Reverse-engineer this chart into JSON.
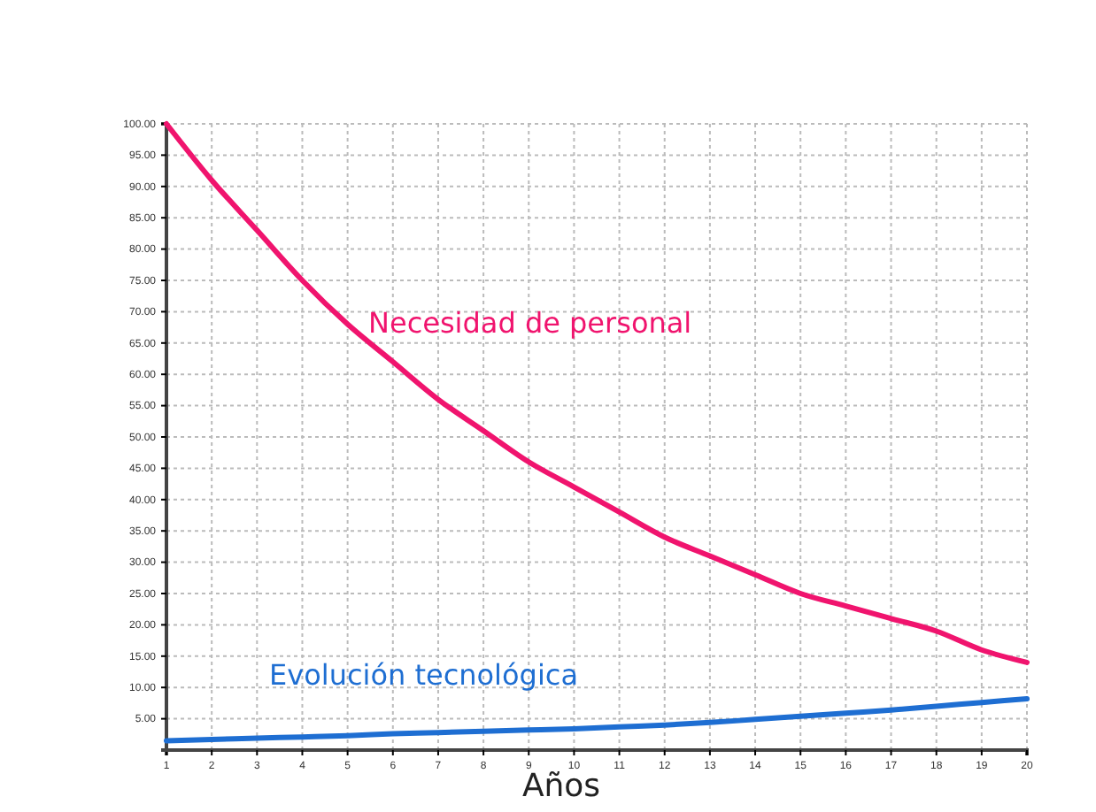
{
  "chart_data": {
    "type": "line",
    "xlabel": "Años",
    "x": [
      1,
      2,
      3,
      4,
      5,
      6,
      7,
      8,
      9,
      10,
      11,
      12,
      13,
      14,
      15,
      16,
      17,
      18,
      19,
      20
    ],
    "series": [
      {
        "name": "Necesidad de personal",
        "color": "#f0146e",
        "values": [
          100,
          91,
          83,
          75,
          68,
          62,
          56,
          51,
          46,
          42,
          38,
          34,
          31,
          28,
          25,
          23,
          21,
          19,
          16,
          14
        ]
      },
      {
        "name": "Evolución tecnológica",
        "color": "#1e6ed2",
        "values": [
          1.5,
          1.7,
          1.9,
          2.1,
          2.3,
          2.6,
          2.8,
          3.0,
          3.2,
          3.4,
          3.7,
          4.0,
          4.4,
          4.9,
          5.4,
          5.9,
          6.4,
          7.0,
          7.6,
          8.2
        ]
      }
    ],
    "xlim": [
      1,
      20
    ],
    "xticks": [
      1,
      2,
      3,
      4,
      5,
      6,
      7,
      8,
      9,
      10,
      11,
      12,
      13,
      14,
      15,
      16,
      17,
      18,
      19,
      20
    ],
    "ylim": [
      0,
      100
    ],
    "yticks": [
      {
        "value": 5,
        "label": "5.00"
      },
      {
        "value": 10,
        "label": "10.00"
      },
      {
        "value": 15,
        "label": "15.00"
      },
      {
        "value": 20,
        "label": "20.00"
      },
      {
        "value": 25,
        "label": "25.00"
      },
      {
        "value": 30,
        "label": "30.00"
      },
      {
        "value": 35,
        "label": "35.00"
      },
      {
        "value": 40,
        "label": "40.00"
      },
      {
        "value": 45,
        "label": "45.00"
      },
      {
        "value": 50,
        "label": "50.00"
      },
      {
        "value": 55,
        "label": "55.00"
      },
      {
        "value": 60,
        "label": "60.00"
      },
      {
        "value": 65,
        "label": "65.00"
      },
      {
        "value": 70,
        "label": "70.00"
      },
      {
        "value": 75,
        "label": "75.00"
      },
      {
        "value": 80,
        "label": "80.00"
      },
      {
        "value": 85,
        "label": "85.00"
      },
      {
        "value": 90,
        "label": "90.00"
      },
      {
        "value": 95,
        "label": "95.00"
      },
      {
        "value": 100,
        "label": "100.00"
      }
    ],
    "grid": true,
    "marker": "none",
    "line_style": "solid",
    "legend": false
  }
}
